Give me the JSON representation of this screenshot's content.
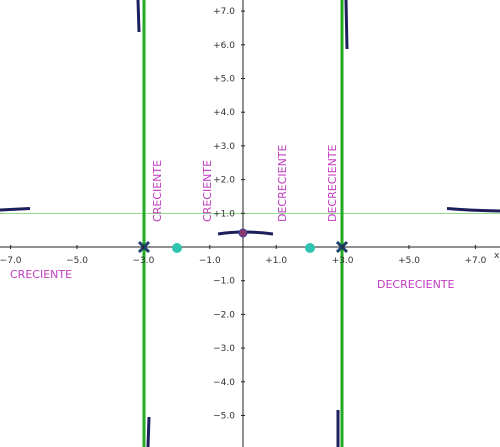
{
  "axes": {
    "x_label": "x",
    "x_tick_labels": [
      "−7.0",
      "−5.0",
      "−3.0",
      "−1.0",
      "+1.0",
      "+3.0",
      "+5.0",
      "+7.0"
    ],
    "y_tick_labels": [
      "+7.0",
      "+6.0",
      "+5.0",
      "+4.0",
      "+3.0",
      "+2.0",
      "+1.0",
      "−1.0",
      "−2.0",
      "−3.0",
      "−4.0",
      "−5.0"
    ]
  },
  "annotations": {
    "vertical": [
      "CRECIENTE",
      "CRECIENTE",
      "DECRECIENTE",
      "DECRECIENTE"
    ],
    "left": "CRECIENTE",
    "right": "DECRECIENTE"
  }
}
